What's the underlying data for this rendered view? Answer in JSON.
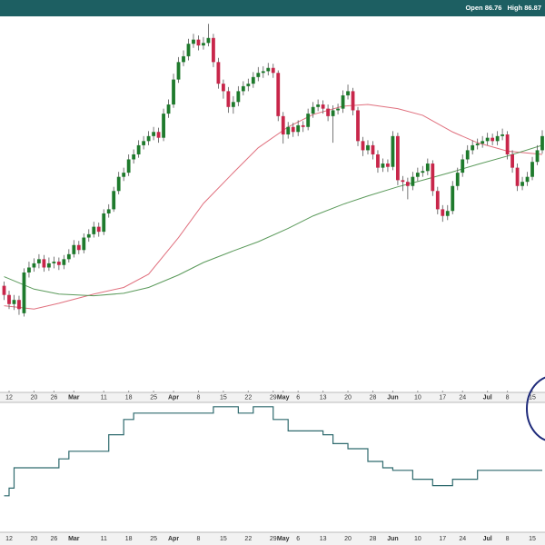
{
  "chart_data": {
    "type": "candlestick",
    "info": [
      "Open 86.76",
      "High 86.87"
    ],
    "xticks": [
      {
        "value": 1,
        "label": "12"
      },
      {
        "value": 6,
        "label": "20"
      },
      {
        "value": 10,
        "label": "26"
      },
      {
        "value": 14,
        "label": "Mar"
      },
      {
        "value": 20,
        "label": "11"
      },
      {
        "value": 25,
        "label": "18"
      },
      {
        "value": 30,
        "label": "25"
      },
      {
        "value": 34,
        "label": "Apr"
      },
      {
        "value": 39,
        "label": "8"
      },
      {
        "value": 44,
        "label": "15"
      },
      {
        "value": 49,
        "label": "22"
      },
      {
        "value": 54,
        "label": "29"
      },
      {
        "value": 56,
        "label": "May"
      },
      {
        "value": 59,
        "label": "6"
      },
      {
        "value": 64,
        "label": "13"
      },
      {
        "value": 69,
        "label": "20"
      },
      {
        "value": 74,
        "label": "28"
      },
      {
        "value": 78,
        "label": "Jun"
      },
      {
        "value": 83,
        "label": "10"
      },
      {
        "value": 88,
        "label": "17"
      },
      {
        "value": 92,
        "label": "24"
      },
      {
        "value": 97,
        "label": "Jul"
      },
      {
        "value": 101,
        "label": "8"
      },
      {
        "value": 106,
        "label": "15"
      }
    ],
    "ylim": [
      53.5,
      98.5
    ],
    "up_color": "#1e7a2c",
    "down_color": "#c8264a",
    "candles": [
      [
        66.1,
        66.6,
        64.4,
        65.0
      ],
      [
        65.0,
        65.5,
        63.3,
        63.9
      ],
      [
        63.9,
        65.0,
        63.2,
        64.4
      ],
      [
        64.4,
        64.9,
        62.6,
        63.3
      ],
      [
        62.8,
        68.2,
        62.4,
        67.7
      ],
      [
        67.7,
        69.0,
        67.1,
        68.3
      ],
      [
        68.3,
        69.4,
        67.8,
        68.8
      ],
      [
        68.8,
        69.9,
        68.2,
        69.3
      ],
      [
        69.3,
        69.8,
        67.8,
        68.3
      ],
      [
        68.3,
        69.5,
        67.9,
        68.8
      ],
      [
        68.8,
        69.6,
        68.2,
        69.0
      ],
      [
        69.0,
        69.5,
        68.0,
        68.6
      ],
      [
        68.6,
        69.8,
        68.1,
        69.3
      ],
      [
        69.3,
        70.5,
        68.9,
        69.9
      ],
      [
        69.9,
        71.6,
        69.5,
        71.0
      ],
      [
        71.0,
        71.5,
        69.9,
        70.4
      ],
      [
        70.4,
        72.4,
        70.0,
        71.9
      ],
      [
        71.9,
        72.9,
        71.4,
        72.3
      ],
      [
        72.3,
        73.8,
        71.9,
        73.2
      ],
      [
        73.2,
        73.7,
        72.0,
        72.6
      ],
      [
        72.6,
        75.3,
        72.2,
        74.8
      ],
      [
        74.8,
        75.9,
        74.3,
        75.3
      ],
      [
        75.3,
        78.0,
        75.0,
        77.5
      ],
      [
        77.5,
        79.8,
        77.1,
        79.2
      ],
      [
        79.2,
        80.3,
        78.7,
        79.7
      ],
      [
        79.7,
        81.9,
        79.3,
        81.3
      ],
      [
        81.3,
        82.5,
        80.8,
        81.9
      ],
      [
        81.9,
        83.6,
        81.5,
        83.0
      ],
      [
        83.0,
        84.1,
        82.5,
        83.5
      ],
      [
        83.5,
        84.7,
        83.0,
        84.1
      ],
      [
        84.1,
        85.2,
        83.6,
        84.6
      ],
      [
        84.6,
        85.1,
        83.3,
        83.9
      ],
      [
        83.9,
        87.4,
        83.5,
        86.8
      ],
      [
        86.8,
        88.5,
        86.3,
        87.9
      ],
      [
        87.9,
        91.6,
        87.5,
        90.9
      ],
      [
        90.9,
        93.6,
        90.5,
        93.0
      ],
      [
        93.0,
        94.4,
        92.5,
        93.7
      ],
      [
        93.7,
        95.8,
        93.2,
        95.2
      ],
      [
        95.2,
        96.4,
        94.7,
        95.7
      ],
      [
        95.7,
        96.2,
        94.4,
        95.0
      ],
      [
        95.0,
        96.0,
        94.5,
        95.3
      ],
      [
        95.3,
        97.6,
        94.9,
        95.9
      ],
      [
        95.9,
        96.4,
        92.4,
        93.0
      ],
      [
        93.0,
        93.5,
        89.8,
        90.4
      ],
      [
        90.4,
        90.9,
        88.6,
        89.5
      ],
      [
        89.5,
        90.0,
        86.9,
        87.6
      ],
      [
        87.6,
        88.9,
        86.8,
        88.2
      ],
      [
        88.2,
        90.1,
        87.7,
        89.5
      ],
      [
        89.5,
        90.7,
        89.0,
        90.1
      ],
      [
        90.1,
        91.0,
        89.5,
        90.4
      ],
      [
        90.4,
        91.8,
        89.9,
        91.2
      ],
      [
        91.2,
        92.4,
        90.7,
        91.7
      ],
      [
        91.7,
        92.5,
        91.1,
        91.9
      ],
      [
        91.9,
        92.9,
        91.4,
        92.3
      ],
      [
        92.3,
        92.8,
        91.1,
        91.7
      ],
      [
        91.7,
        92.0,
        85.9,
        86.5
      ],
      [
        86.5,
        87.0,
        83.2,
        84.3
      ],
      [
        84.3,
        85.8,
        83.8,
        85.2
      ],
      [
        85.2,
        85.7,
        84.0,
        84.6
      ],
      [
        84.6,
        86.0,
        84.1,
        85.4
      ],
      [
        85.4,
        85.9,
        84.6,
        85.2
      ],
      [
        85.2,
        87.4,
        84.8,
        86.8
      ],
      [
        86.8,
        88.2,
        86.3,
        87.6
      ],
      [
        87.6,
        88.5,
        87.1,
        87.9
      ],
      [
        87.9,
        88.4,
        86.8,
        87.4
      ],
      [
        87.4,
        87.9,
        85.9,
        86.5
      ],
      [
        86.5,
        87.8,
        83.3,
        87.2
      ],
      [
        87.2,
        88.0,
        86.7,
        87.4
      ],
      [
        87.4,
        89.6,
        86.9,
        89.0
      ],
      [
        89.0,
        90.3,
        88.5,
        89.5
      ],
      [
        89.5,
        89.9,
        86.6,
        87.2
      ],
      [
        87.2,
        87.6,
        82.9,
        83.5
      ],
      [
        83.5,
        84.0,
        81.7,
        82.4
      ],
      [
        82.4,
        83.6,
        81.9,
        83.0
      ],
      [
        83.0,
        83.5,
        81.3,
        81.9
      ],
      [
        81.9,
        82.4,
        79.7,
        80.3
      ],
      [
        80.3,
        81.4,
        79.8,
        80.8
      ],
      [
        80.8,
        81.3,
        79.8,
        80.4
      ],
      [
        80.4,
        84.7,
        80.0,
        84.1
      ],
      [
        84.1,
        84.5,
        78.2,
        78.8
      ],
      [
        78.8,
        79.3,
        77.5,
        78.6
      ],
      [
        78.6,
        79.1,
        76.5,
        78.1
      ],
      [
        78.1,
        79.8,
        77.6,
        79.2
      ],
      [
        79.2,
        80.3,
        78.7,
        79.7
      ],
      [
        79.7,
        80.5,
        79.2,
        79.9
      ],
      [
        79.9,
        81.4,
        79.4,
        80.8
      ],
      [
        80.8,
        81.2,
        76.9,
        77.5
      ],
      [
        77.5,
        78.0,
        74.7,
        75.3
      ],
      [
        75.3,
        75.8,
        73.8,
        74.5
      ],
      [
        74.5,
        75.8,
        74.0,
        75.1
      ],
      [
        75.1,
        78.7,
        74.7,
        78.1
      ],
      [
        78.1,
        80.3,
        77.6,
        79.7
      ],
      [
        79.7,
        81.9,
        79.2,
        81.3
      ],
      [
        81.3,
        83.0,
        80.8,
        82.4
      ],
      [
        82.4,
        83.6,
        81.9,
        83.0
      ],
      [
        83.0,
        83.8,
        82.5,
        83.2
      ],
      [
        83.2,
        84.1,
        82.7,
        83.5
      ],
      [
        83.5,
        84.5,
        83.0,
        83.9
      ],
      [
        83.9,
        84.4,
        83.0,
        83.5
      ],
      [
        83.5,
        84.7,
        83.0,
        84.1
      ],
      [
        84.1,
        85.0,
        83.6,
        84.3
      ],
      [
        84.3,
        84.7,
        81.3,
        81.9
      ],
      [
        81.9,
        82.4,
        79.7,
        80.3
      ],
      [
        80.3,
        80.8,
        77.5,
        78.1
      ],
      [
        78.1,
        79.2,
        77.6,
        78.6
      ],
      [
        78.6,
        79.8,
        78.1,
        79.2
      ],
      [
        79.2,
        81.6,
        78.8,
        81.0
      ],
      [
        81.0,
        83.0,
        80.6,
        82.4
      ],
      [
        82.4,
        84.8,
        82.0,
        84.1
      ]
    ],
    "series": [
      {
        "color": "#e0707e",
        "x": [
          0,
          6,
          11,
          18,
          24,
          29,
          35,
          40,
          46,
          51,
          57,
          62,
          68,
          73,
          79,
          84,
          90,
          95,
          101,
          108
        ],
        "values": [
          63.7,
          63.3,
          64.0,
          65.1,
          65.9,
          67.5,
          71.9,
          76.0,
          79.7,
          82.7,
          85.2,
          86.7,
          87.7,
          87.9,
          87.4,
          86.6,
          84.6,
          83.3,
          82.3,
          81.9
        ]
      },
      {
        "color": "#5b9a5b",
        "x": [
          0,
          6,
          11,
          18,
          24,
          29,
          35,
          40,
          46,
          51,
          57,
          62,
          68,
          73,
          79,
          84,
          90,
          95,
          101,
          108
        ],
        "values": [
          67.2,
          65.7,
          65.1,
          64.9,
          65.2,
          65.9,
          67.4,
          68.9,
          70.3,
          71.4,
          73.0,
          74.5,
          75.9,
          76.9,
          78.0,
          78.8,
          79.8,
          80.7,
          81.7,
          83.0
        ]
      }
    ],
    "indicator": {
      "type": "step",
      "color": "#2f6a6e",
      "ylim": [
        0,
        100
      ],
      "x": [
        0,
        1,
        2,
        11,
        13,
        21,
        24,
        26,
        42,
        47,
        50,
        54,
        57,
        64,
        66,
        69,
        73,
        76,
        78,
        82,
        86,
        90,
        95,
        108
      ],
      "values": [
        28,
        34,
        50,
        57,
        63,
        76,
        88,
        93,
        98,
        93,
        98,
        88,
        79,
        76,
        69,
        65,
        55,
        50,
        48,
        41,
        36,
        41,
        48,
        48
      ]
    }
  }
}
